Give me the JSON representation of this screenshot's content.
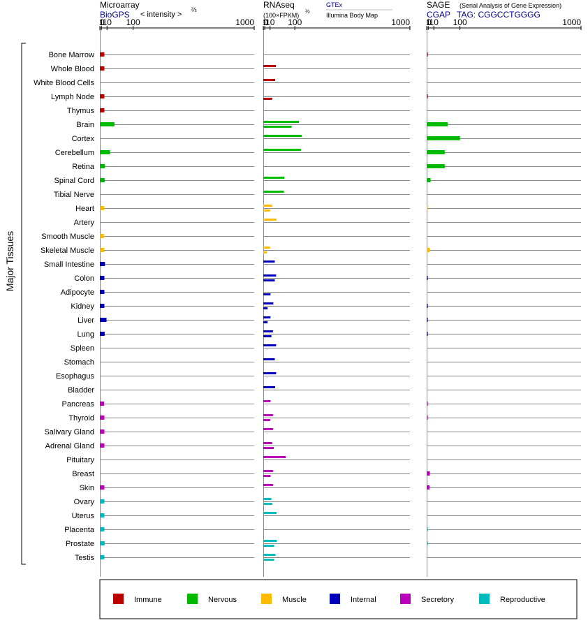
{
  "panels": {
    "microarray": {
      "title": "Microarray",
      "source": "BioGPS",
      "subtitle": "< intensity >",
      "exponent": "⅔",
      "ticks": [
        "0",
        "1",
        "10",
        "100",
        "1000"
      ]
    },
    "rnaseq": {
      "title": "RNAseq",
      "subtitle": "(100×FPKM)",
      "exponent": "½",
      "source_a": "GTEx",
      "source_b": "Illumina Body Map",
      "ticks": [
        "0",
        "1",
        "10",
        "100",
        "1000"
      ]
    },
    "sage": {
      "title": "SAGE",
      "subtitle": "(Serial Analysis of Gene Expression)",
      "source": "CGAP",
      "tag": "TAG: CGGCCTGGGG",
      "ticks": [
        "0",
        "1",
        "10",
        "100",
        "1000"
      ]
    }
  },
  "ylabel": "Major Tissues",
  "legend": [
    {
      "label": "Immune",
      "color": "#bb0000"
    },
    {
      "label": "Nervous",
      "color": "#00bb00"
    },
    {
      "label": "Muscle",
      "color": "#ffbb00"
    },
    {
      "label": "Internal",
      "color": "#0000bb"
    },
    {
      "label": "Secretory",
      "color": "#bb00bb"
    },
    {
      "label": "Reproductive",
      "color": "#00bbbb"
    }
  ],
  "chart_data": {
    "type": "bar",
    "scale": "power",
    "xlim": [
      0,
      1000
    ],
    "categories": [
      "Bone Marrow",
      "Whole Blood",
      "White Blood Cells",
      "Lymph Node",
      "Thymus",
      "Brain",
      "Cortex",
      "Cerebellum",
      "Retina",
      "Spinal Cord",
      "Tibial Nerve",
      "Heart",
      "Artery",
      "Smooth Muscle",
      "Skeletal Muscle",
      "Small Intestine",
      "Colon",
      "Adipocyte",
      "Kidney",
      "Liver",
      "Lung",
      "Spleen",
      "Stomach",
      "Esophagus",
      "Bladder",
      "Pancreas",
      "Thyroid",
      "Salivary Gland",
      "Adrenal Gland",
      "Pituitary",
      "Breast",
      "Skin",
      "Ovary",
      "Uterus",
      "Placenta",
      "Prostate",
      "Testis"
    ],
    "groups": [
      "Immune",
      "Immune",
      "Immune",
      "Immune",
      "Immune",
      "Nervous",
      "Nervous",
      "Nervous",
      "Nervous",
      "Nervous",
      "Nervous",
      "Muscle",
      "Muscle",
      "Muscle",
      "Muscle",
      "Internal",
      "Internal",
      "Internal",
      "Internal",
      "Internal",
      "Internal",
      "Internal",
      "Internal",
      "Internal",
      "Internal",
      "Secretory",
      "Secretory",
      "Secretory",
      "Secretory",
      "Secretory",
      "Secretory",
      "Secretory",
      "Reproductive",
      "Reproductive",
      "Reproductive",
      "Reproductive",
      "Reproductive"
    ],
    "series": [
      {
        "name": "Microarray",
        "values": [
          5,
          5,
          null,
          5,
          5,
          29,
          null,
          17,
          6,
          5.5,
          null,
          4.5,
          null,
          4.2,
          5,
          6,
          5,
          5,
          5,
          9,
          5.5,
          null,
          null,
          null,
          null,
          4.5,
          5,
          5,
          5,
          null,
          null,
          5,
          5,
          5,
          5,
          5.5,
          5
        ]
      },
      {
        "name": "GTEx",
        "values": [
          null,
          25,
          23,
          null,
          null,
          120,
          135,
          130,
          null,
          55,
          53,
          15,
          27,
          null,
          10,
          22,
          26,
          null,
          18,
          11,
          17,
          26,
          22,
          26,
          23,
          11,
          17,
          17,
          15,
          60,
          17,
          17,
          13,
          27,
          null,
          28,
          24
        ]
      },
      {
        "name": "Illumina Body Map",
        "values": [
          null,
          null,
          null,
          15,
          null,
          85,
          null,
          null,
          null,
          null,
          null,
          10,
          null,
          null,
          4,
          null,
          22,
          11,
          5,
          5,
          13,
          null,
          null,
          null,
          null,
          null,
          10,
          null,
          19,
          null,
          11,
          null,
          15,
          null,
          null,
          20,
          20
        ]
      },
      {
        "name": "SAGE",
        "values": [
          0.05,
          null,
          null,
          0.05,
          null,
          50,
          100,
          40,
          40,
          4,
          null,
          0.03,
          null,
          null,
          3,
          null,
          0.05,
          null,
          0.05,
          0.05,
          0.05,
          null,
          null,
          null,
          null,
          0.05,
          0.05,
          null,
          null,
          null,
          3,
          2.5,
          null,
          null,
          0.05,
          0.05,
          null
        ]
      }
    ]
  }
}
